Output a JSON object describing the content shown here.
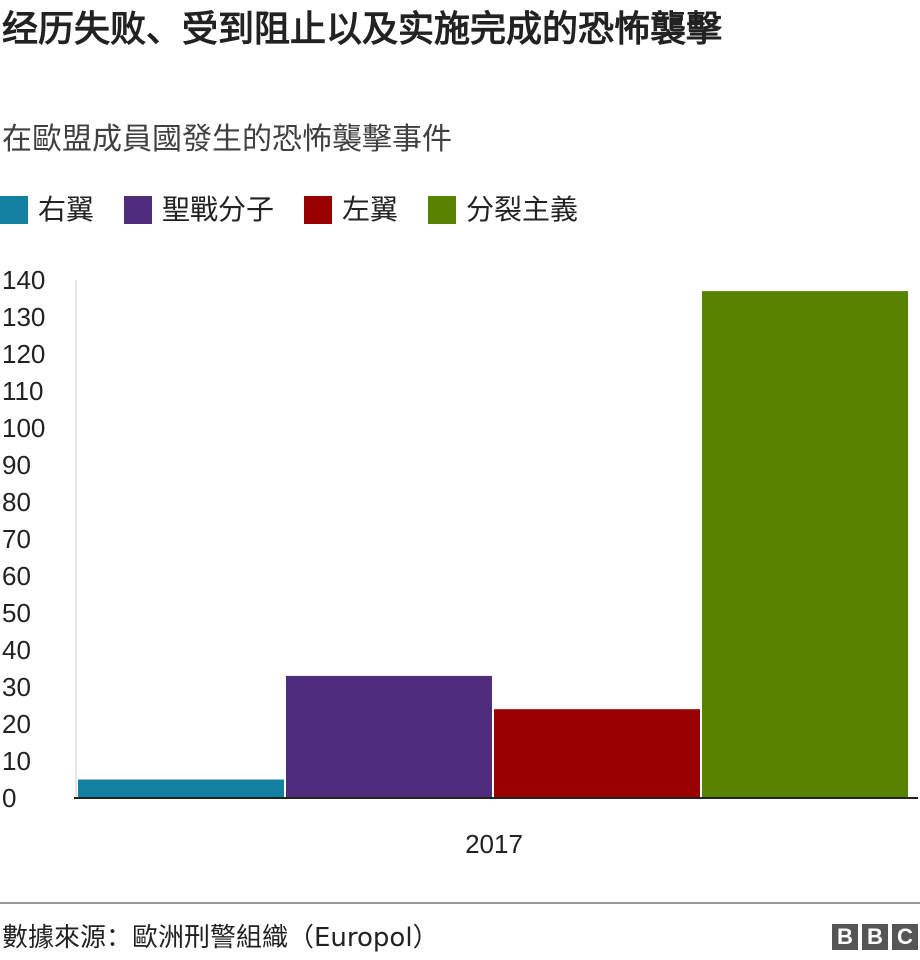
{
  "title": "经历失败、受到阻止以及实施完成的恐怖襲擊",
  "subtitle": "在歐盟成員國發生的恐怖襲擊事件",
  "source": "數據來源：歐洲刑警組織（Europol）",
  "logo": {
    "letters": [
      "B",
      "B",
      "C"
    ]
  },
  "legend": [
    {
      "label": "右翼",
      "color": "#1380A1"
    },
    {
      "label": "聖戰分子",
      "color": "#4F2C7B"
    },
    {
      "label": "左翼",
      "color": "#990000"
    },
    {
      "label": "分裂主義",
      "color": "#588300"
    }
  ],
  "chart_data": {
    "type": "bar",
    "categories": [
      "2017"
    ],
    "series": [
      {
        "name": "右翼",
        "values": [
          5
        ],
        "color": "#1380A1"
      },
      {
        "name": "聖戰分子",
        "values": [
          33
        ],
        "color": "#4F2C7B"
      },
      {
        "name": "左翼",
        "values": [
          24
        ],
        "color": "#990000"
      },
      {
        "name": "分裂主義",
        "values": [
          137
        ],
        "color": "#588300"
      }
    ],
    "ylim": [
      0,
      140
    ],
    "yticks": [
      "0",
      "10",
      "20",
      "30",
      "40",
      "50",
      "60",
      "70",
      "80",
      "90",
      "100",
      "110",
      "120",
      "130",
      "140"
    ],
    "grid": false,
    "legend_position": "top-left"
  }
}
